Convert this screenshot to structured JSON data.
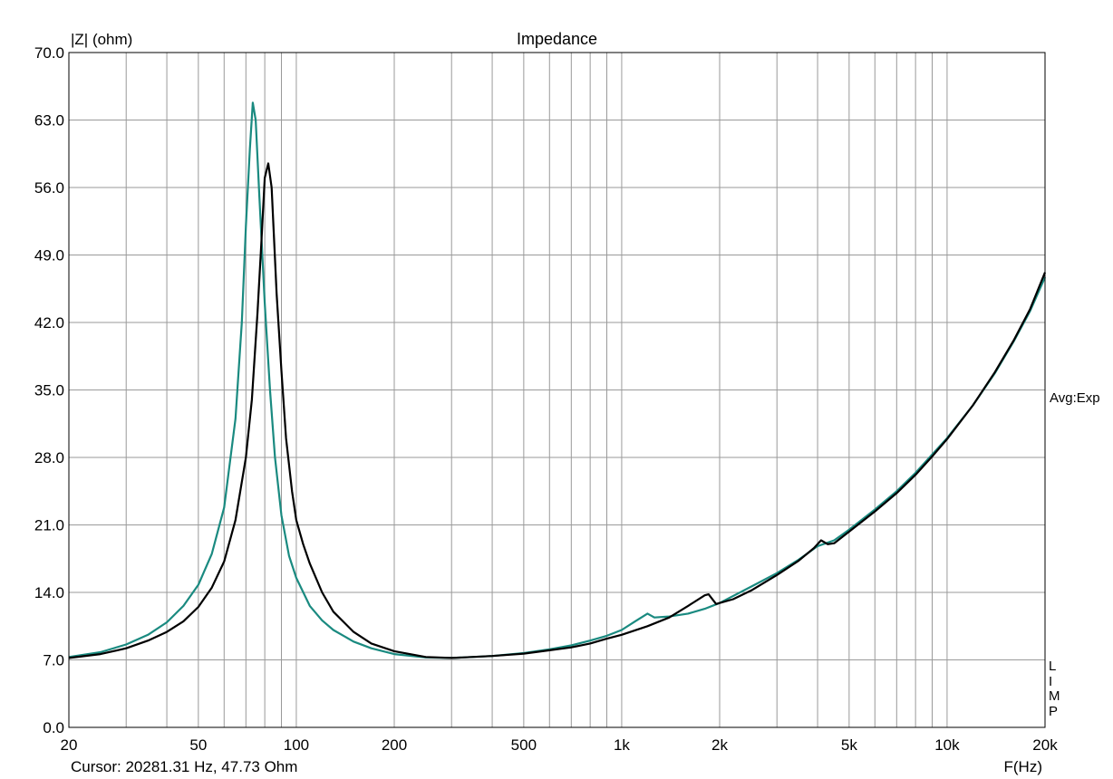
{
  "chart_data": {
    "type": "line",
    "title": "Impedance",
    "ylabel": "|Z| (ohm)",
    "xlabel": "F(Hz)",
    "x_scale": "log",
    "xlim": [
      20,
      20000
    ],
    "ylim": [
      0,
      70
    ],
    "grid": true,
    "y_ticks": [
      "0.0",
      "7.0",
      "14.0",
      "21.0",
      "28.0",
      "35.0",
      "42.0",
      "49.0",
      "56.0",
      "63.0",
      "70.0"
    ],
    "x_tick_labels": [
      {
        "value": 20,
        "label": "20"
      },
      {
        "value": 50,
        "label": "50"
      },
      {
        "value": 100,
        "label": "100"
      },
      {
        "value": 200,
        "label": "200"
      },
      {
        "value": 500,
        "label": "500"
      },
      {
        "value": 1000,
        "label": "1k"
      },
      {
        "value": 2000,
        "label": "2k"
      },
      {
        "value": 5000,
        "label": "5k"
      },
      {
        "value": 10000,
        "label": "10k"
      },
      {
        "value": 20000,
        "label": "20k"
      }
    ],
    "series": [
      {
        "color": "#1a8a80",
        "points": [
          [
            20,
            7.3
          ],
          [
            25,
            7.8
          ],
          [
            30,
            8.6
          ],
          [
            35,
            9.6
          ],
          [
            40,
            10.9
          ],
          [
            45,
            12.6
          ],
          [
            50,
            14.8
          ],
          [
            55,
            18.0
          ],
          [
            60,
            22.8
          ],
          [
            65,
            32.0
          ],
          [
            68,
            42.0
          ],
          [
            70,
            52.0
          ],
          [
            72,
            60.0
          ],
          [
            73.5,
            64.8
          ],
          [
            75,
            63.0
          ],
          [
            77,
            55.0
          ],
          [
            80,
            44.0
          ],
          [
            83,
            35.0
          ],
          [
            86,
            28.0
          ],
          [
            90,
            22.0
          ],
          [
            95,
            17.8
          ],
          [
            100,
            15.5
          ],
          [
            110,
            12.6
          ],
          [
            120,
            11.1
          ],
          [
            130,
            10.1
          ],
          [
            150,
            8.9
          ],
          [
            170,
            8.2
          ],
          [
            200,
            7.6
          ],
          [
            250,
            7.25
          ],
          [
            300,
            7.2
          ],
          [
            400,
            7.4
          ],
          [
            500,
            7.7
          ],
          [
            600,
            8.1
          ],
          [
            700,
            8.5
          ],
          [
            800,
            9.0
          ],
          [
            900,
            9.5
          ],
          [
            1000,
            10.1
          ],
          [
            1100,
            11.0
          ],
          [
            1200,
            11.8
          ],
          [
            1260,
            11.4
          ],
          [
            1400,
            11.5
          ],
          [
            1600,
            11.8
          ],
          [
            1800,
            12.3
          ],
          [
            2000,
            12.9
          ],
          [
            2500,
            14.6
          ],
          [
            3000,
            16.0
          ],
          [
            3500,
            17.4
          ],
          [
            4000,
            18.8
          ],
          [
            4500,
            19.4
          ],
          [
            5000,
            20.5
          ],
          [
            6000,
            22.6
          ],
          [
            7000,
            24.5
          ],
          [
            8000,
            26.4
          ],
          [
            9000,
            28.3
          ],
          [
            10000,
            30.0
          ],
          [
            12000,
            33.4
          ],
          [
            14000,
            36.7
          ],
          [
            16000,
            40.0
          ],
          [
            18000,
            43.2
          ],
          [
            20000,
            46.7
          ]
        ]
      },
      {
        "color": "#000000",
        "points": [
          [
            20,
            7.2
          ],
          [
            25,
            7.6
          ],
          [
            30,
            8.2
          ],
          [
            35,
            9.0
          ],
          [
            40,
            9.9
          ],
          [
            45,
            11.0
          ],
          [
            50,
            12.5
          ],
          [
            55,
            14.5
          ],
          [
            60,
            17.2
          ],
          [
            65,
            21.5
          ],
          [
            70,
            28.0
          ],
          [
            73,
            34.0
          ],
          [
            76,
            43.0
          ],
          [
            78,
            50.0
          ],
          [
            80,
            57.0
          ],
          [
            82,
            58.5
          ],
          [
            84,
            56.0
          ],
          [
            87,
            45.0
          ],
          [
            90,
            37.0
          ],
          [
            93,
            30.0
          ],
          [
            97,
            24.5
          ],
          [
            100,
            21.5
          ],
          [
            105,
            19.0
          ],
          [
            110,
            17.0
          ],
          [
            120,
            14.0
          ],
          [
            130,
            12.0
          ],
          [
            150,
            9.9
          ],
          [
            170,
            8.7
          ],
          [
            200,
            7.9
          ],
          [
            250,
            7.3
          ],
          [
            300,
            7.2
          ],
          [
            400,
            7.4
          ],
          [
            500,
            7.65
          ],
          [
            600,
            8.0
          ],
          [
            700,
            8.3
          ],
          [
            800,
            8.7
          ],
          [
            900,
            9.2
          ],
          [
            1000,
            9.6
          ],
          [
            1200,
            10.5
          ],
          [
            1400,
            11.4
          ],
          [
            1600,
            12.6
          ],
          [
            1800,
            13.7
          ],
          [
            1850,
            13.8
          ],
          [
            1950,
            12.8
          ],
          [
            2200,
            13.3
          ],
          [
            2500,
            14.2
          ],
          [
            3000,
            15.8
          ],
          [
            3500,
            17.3
          ],
          [
            3900,
            18.6
          ],
          [
            4100,
            19.4
          ],
          [
            4300,
            19.0
          ],
          [
            4500,
            19.1
          ],
          [
            5000,
            20.3
          ],
          [
            6000,
            22.4
          ],
          [
            7000,
            24.3
          ],
          [
            8000,
            26.2
          ],
          [
            9000,
            28.1
          ],
          [
            10000,
            29.9
          ],
          [
            12000,
            33.4
          ],
          [
            14000,
            36.8
          ],
          [
            16000,
            40.1
          ],
          [
            18000,
            43.4
          ],
          [
            20000,
            47.2
          ]
        ]
      }
    ]
  },
  "cursor_readout": "Cursor: 20281.31 Hz, 47.73 Ohm",
  "avg_label": "Avg:Exp",
  "limp_letters": [
    "L",
    "I",
    "M",
    "P"
  ]
}
